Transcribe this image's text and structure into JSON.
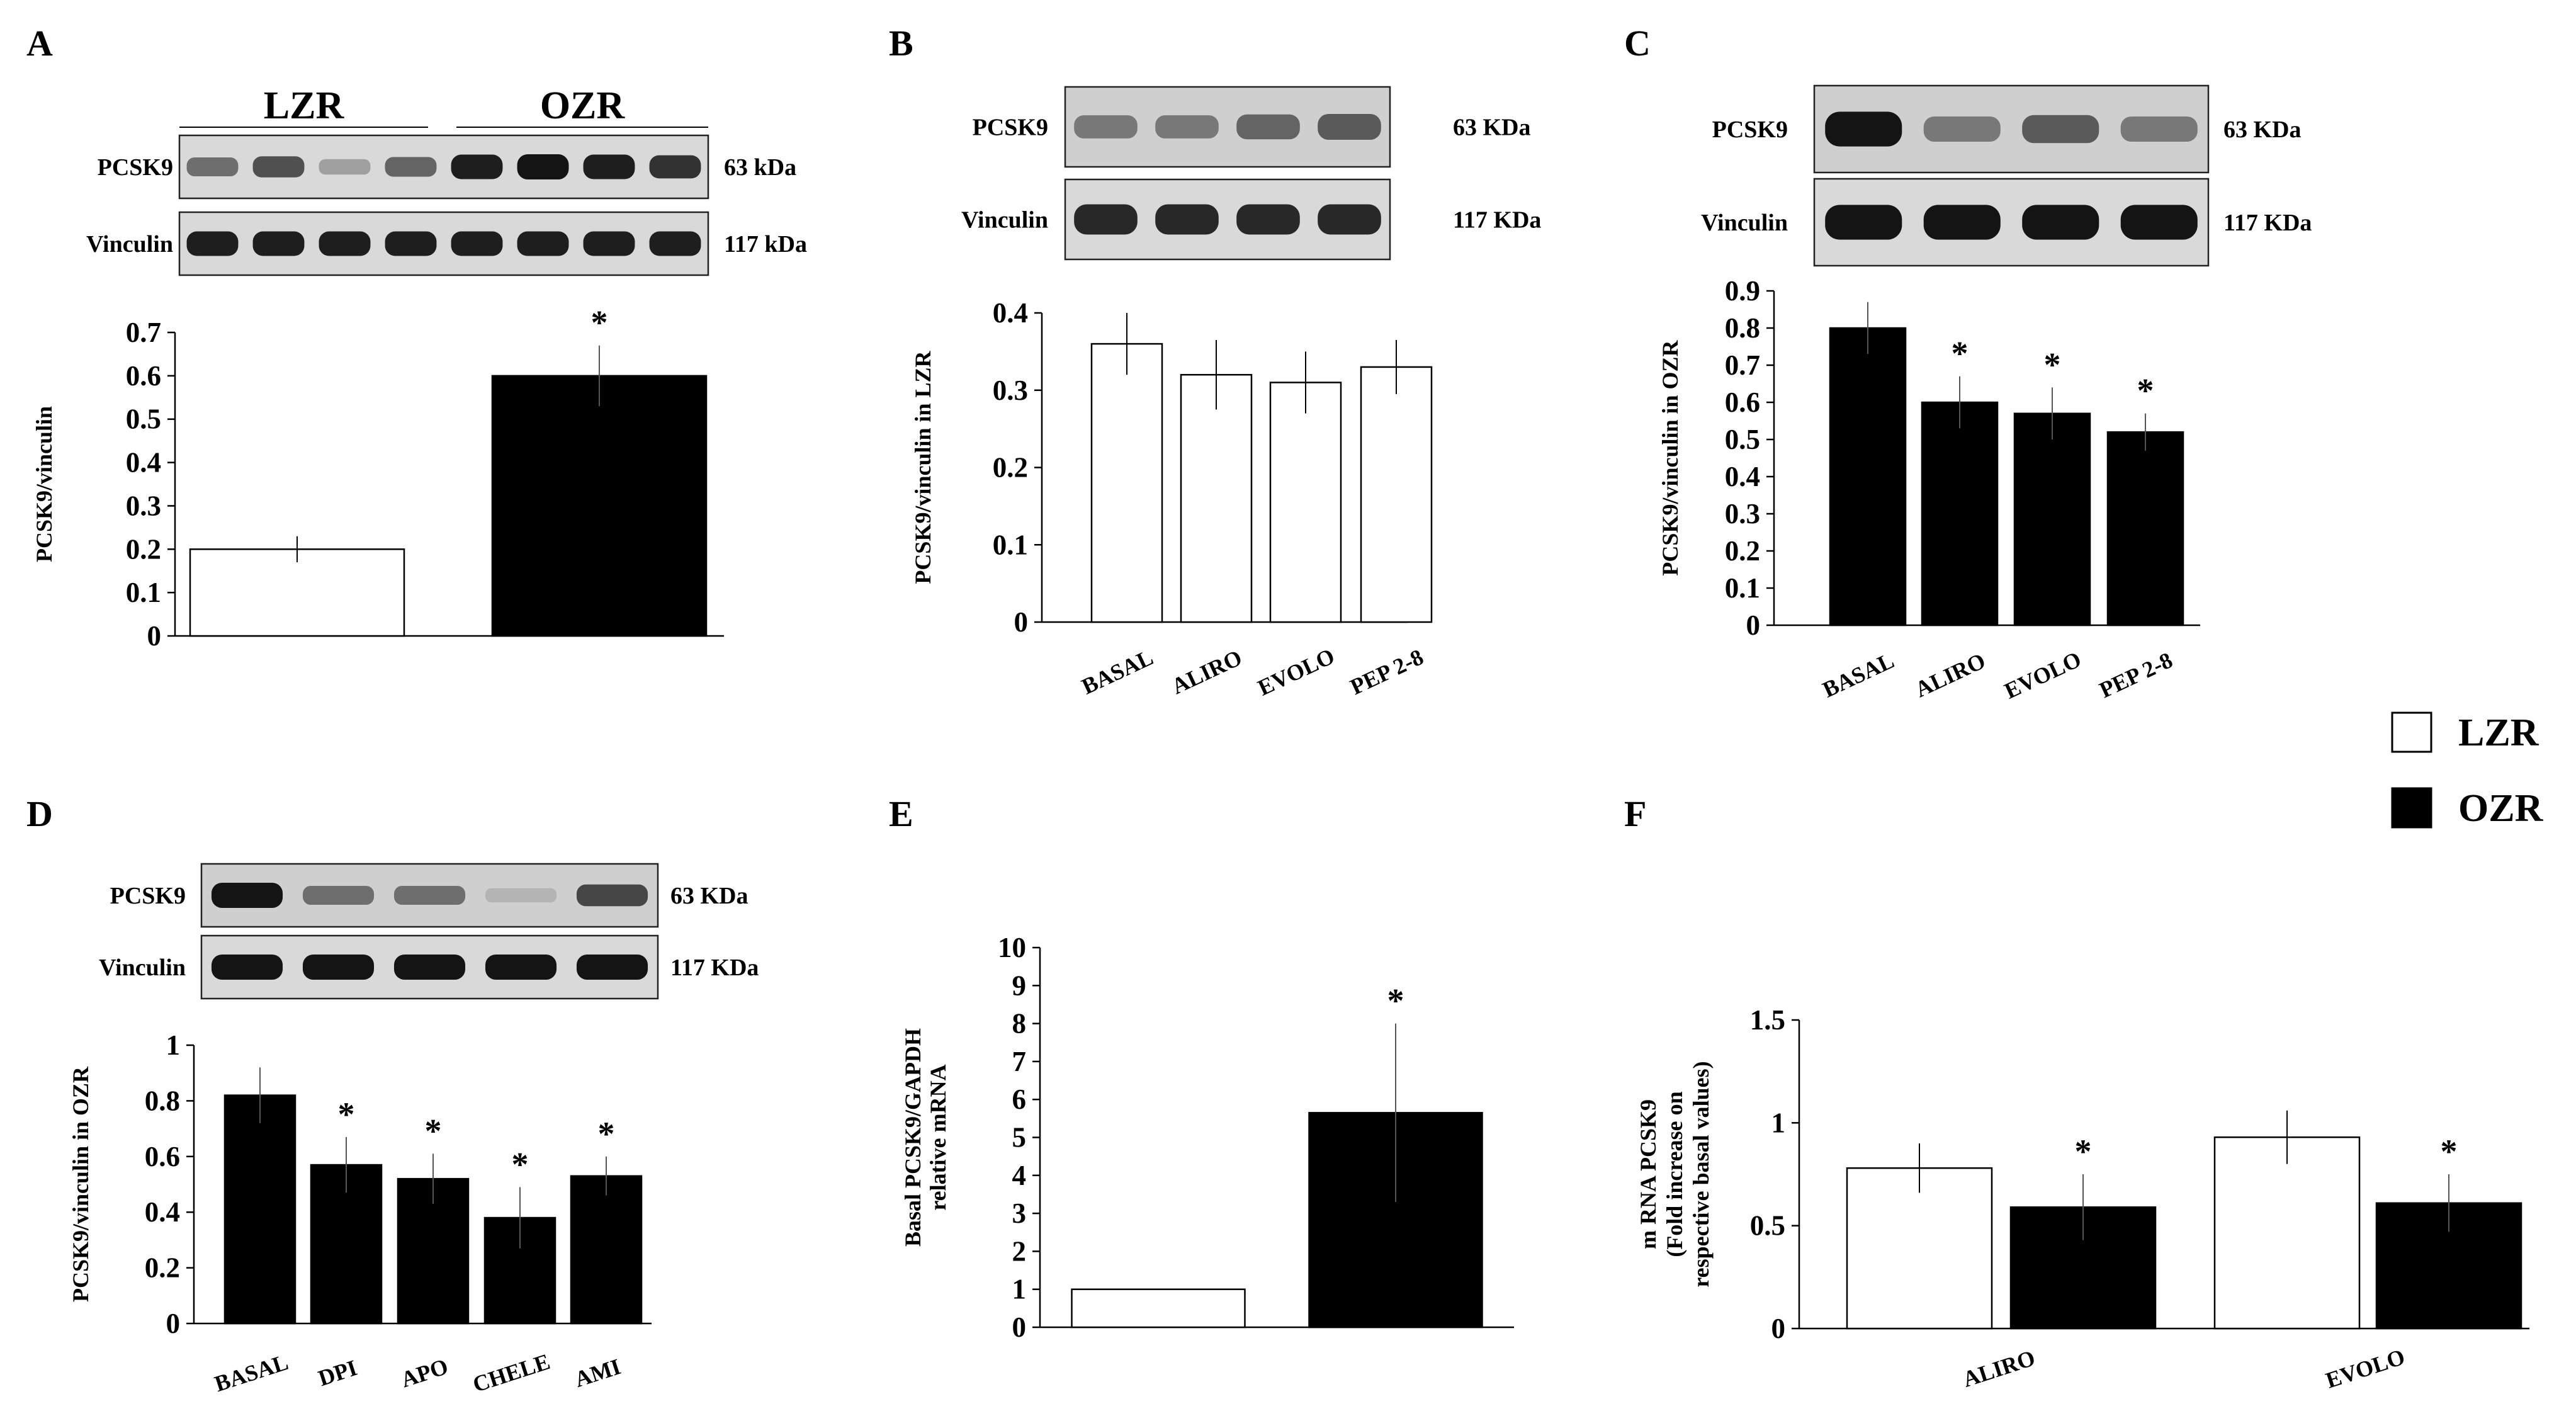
{
  "legend": [
    {
      "label": "LZR",
      "color": "#ffffff"
    },
    {
      "label": "OZR",
      "color": "#000000"
    }
  ],
  "chart_data": [
    {
      "panel": "A",
      "type": "bar",
      "blot": {
        "groups": [
          "LZR",
          "OZR"
        ],
        "rows": [
          {
            "protein": "PCSK9",
            "size": "63 kDa",
            "lanes": [
              0.55,
              0.7,
              0.3,
              0.6,
              0.95,
              1.0,
              0.95,
              0.85
            ]
          },
          {
            "protein": "Vinculin",
            "size": "117 kDa",
            "lanes": [
              0.95,
              0.95,
              0.95,
              0.95,
              0.95,
              0.95,
              0.95,
              0.95
            ]
          }
        ]
      },
      "categories": [
        "",
        ""
      ],
      "series": [
        {
          "name": "LZR",
          "color": "#ffffff",
          "values": [
            0.2,
            null
          ],
          "errors": [
            0.03,
            null
          ],
          "sig": [
            false,
            false
          ]
        },
        {
          "name": "OZR",
          "color": "#000000",
          "values": [
            null,
            0.6
          ],
          "errors": [
            null,
            0.07
          ],
          "sig": [
            false,
            true
          ]
        }
      ],
      "ylim": [
        0,
        0.7
      ],
      "yticks": [
        "0",
        "0.1",
        "0.2",
        "0.3",
        "0.4",
        "0.5",
        "0.6",
        "0.7"
      ],
      "ylabel": "PCSK9/vinculin",
      "xlabel": ""
    },
    {
      "panel": "B",
      "type": "bar",
      "blot": {
        "groups": [],
        "rows": [
          {
            "protein": "PCSK9",
            "size": "63 KDa",
            "lanes": [
              0.5,
              0.5,
              0.6,
              0.65
            ]
          },
          {
            "protein": "Vinculin",
            "size": "117 KDa",
            "lanes": [
              0.9,
              0.9,
              0.9,
              0.9
            ]
          }
        ]
      },
      "categories": [
        "BASAL",
        "ALIRO",
        "EVOLO",
        "PEP 2-8"
      ],
      "series": [
        {
          "name": "LZR",
          "color": "#ffffff",
          "values": [
            0.36,
            0.32,
            0.31,
            0.33
          ],
          "errors": [
            0.04,
            0.045,
            0.04,
            0.035
          ],
          "sig": [
            false,
            false,
            false,
            false
          ]
        }
      ],
      "ylim": [
        0,
        0.4
      ],
      "yticks": [
        "0",
        "0.1",
        "0.2",
        "0.3",
        "0.4"
      ],
      "ylabel": "PCSK9/vinculin in LZR",
      "xlabel": ""
    },
    {
      "panel": "C",
      "type": "bar",
      "blot": {
        "groups": [],
        "rows": [
          {
            "protein": "PCSK9",
            "size": "63 KDa",
            "lanes": [
              1.0,
              0.5,
              0.65,
              0.5
            ]
          },
          {
            "protein": "Vinculin",
            "size": "117 KDa",
            "lanes": [
              1.0,
              1.0,
              1.0,
              1.0
            ]
          }
        ]
      },
      "categories": [
        "BASAL",
        "ALIRO",
        "EVOLO",
        "PEP 2-8"
      ],
      "series": [
        {
          "name": "OZR",
          "color": "#000000",
          "values": [
            0.8,
            0.6,
            0.57,
            0.52
          ],
          "errors": [
            0.07,
            0.07,
            0.07,
            0.05
          ],
          "sig": [
            false,
            true,
            true,
            true
          ]
        }
      ],
      "ylim": [
        0,
        0.9
      ],
      "yticks": [
        "0",
        "0.1",
        "0.2",
        "0.3",
        "0.4",
        "0.5",
        "0.6",
        "0.7",
        "0.8",
        "0.9"
      ],
      "ylabel": "PCSK9/vinculin in OZR",
      "xlabel": ""
    },
    {
      "panel": "D",
      "type": "bar",
      "blot": {
        "groups": [],
        "rows": [
          {
            "protein": "PCSK9",
            "size": "63 KDa",
            "lanes": [
              1.0,
              0.55,
              0.55,
              0.2,
              0.75
            ]
          },
          {
            "protein": "Vinculin",
            "size": "117 KDa",
            "lanes": [
              1.0,
              1.0,
              1.0,
              1.0,
              1.0
            ]
          }
        ]
      },
      "categories": [
        "BASAL",
        "DPI",
        "APO",
        "CHELE",
        "AMI"
      ],
      "series": [
        {
          "name": "OZR",
          "color": "#000000",
          "values": [
            0.82,
            0.57,
            0.52,
            0.38,
            0.53
          ],
          "errors": [
            0.1,
            0.1,
            0.09,
            0.11,
            0.07
          ],
          "sig": [
            false,
            true,
            true,
            true,
            true
          ]
        }
      ],
      "ylim": [
        0,
        1
      ],
      "yticks": [
        "0",
        "0.2",
        "0.4",
        "0.6",
        "0.8",
        "1"
      ],
      "ylabel": "PCSK9/vinculin in OZR",
      "xlabel": ""
    },
    {
      "panel": "E",
      "type": "bar",
      "categories": [
        "",
        ""
      ],
      "series": [
        {
          "name": "LZR",
          "color": "#ffffff",
          "values": [
            1,
            null
          ],
          "errors": [
            0,
            null
          ],
          "sig": [
            false,
            false
          ]
        },
        {
          "name": "OZR",
          "color": "#000000",
          "values": [
            null,
            5.65
          ],
          "errors": [
            null,
            2.35
          ],
          "sig": [
            false,
            true
          ]
        }
      ],
      "ylim": [
        0,
        10
      ],
      "yticks": [
        "0",
        "1",
        "2",
        "3",
        "4",
        "5",
        "6",
        "7",
        "8",
        "9",
        "10"
      ],
      "ylabel": [
        "Basal PCSK9/GAPDH",
        "relative mRNA"
      ],
      "xlabel": ""
    },
    {
      "panel": "F",
      "type": "bar",
      "categories": [
        "ALIRO",
        "EVOLO"
      ],
      "series": [
        {
          "name": "LZR",
          "color": "#ffffff",
          "values": [
            0.78,
            0.93
          ],
          "errors": [
            0.12,
            0.13
          ],
          "sig": [
            false,
            false
          ]
        },
        {
          "name": "OZR",
          "color": "#000000",
          "values": [
            0.59,
            0.61
          ],
          "errors": [
            0.16,
            0.14
          ],
          "sig": [
            true,
            true
          ]
        }
      ],
      "ylim": [
        0,
        1.5
      ],
      "yticks": [
        "0",
        "0.5",
        "1",
        "1.5"
      ],
      "ylabel": [
        "m RNA PCSK9",
        "(Fold increase on",
        "respective basal values)"
      ],
      "xlabel": ""
    }
  ]
}
